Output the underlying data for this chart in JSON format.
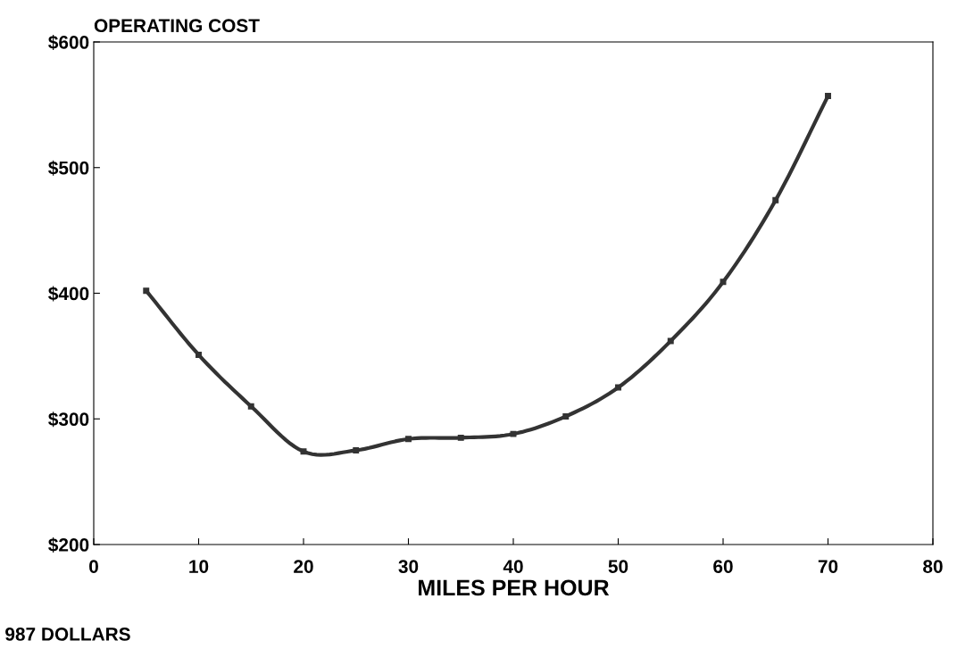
{
  "chart_data": {
    "type": "line",
    "title": "OPERATING COST",
    "xlabel": "MILES PER HOUR",
    "x": [
      5,
      10,
      15,
      20,
      25,
      30,
      35,
      40,
      45,
      50,
      55,
      60,
      65,
      70
    ],
    "series": [
      {
        "color": "#333333",
        "values": [
          402,
          351,
          310,
          274,
          275,
          284,
          285,
          288,
          302,
          325,
          362,
          409,
          474,
          557
        ]
      }
    ],
    "marker": "square",
    "line_style": "solid",
    "grid": false,
    "legend": false,
    "xlim": [
      0,
      80
    ],
    "xticks": [
      0,
      10,
      20,
      30,
      40,
      50,
      60,
      70,
      80
    ],
    "ylim": [
      200,
      600
    ],
    "yticks": [
      {
        "value": 200,
        "label": "$200"
      },
      {
        "value": 300,
        "label": "$300"
      },
      {
        "value": 400,
        "label": "$400"
      },
      {
        "value": 500,
        "label": "$500"
      },
      {
        "value": 600,
        "label": "$600"
      }
    ],
    "annotations": [
      "987 DOLLARS"
    ]
  }
}
